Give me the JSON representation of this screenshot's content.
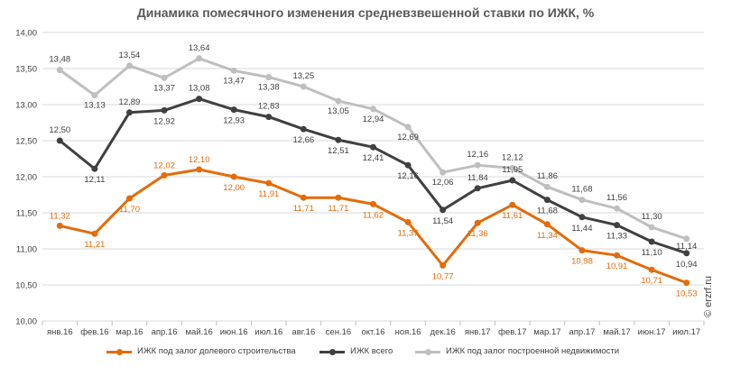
{
  "chart_data": {
    "type": "line",
    "title": "Динамика помесячного изменения средневзвешенной ставки по ИЖК, %",
    "xlabel": "",
    "ylabel": "",
    "ylim": [
      10.0,
      14.0
    ],
    "yticks": [
      "10,00",
      "10,50",
      "11,00",
      "11,50",
      "12,00",
      "12,50",
      "13,00",
      "13,50",
      "14,00"
    ],
    "categories": [
      "янв.16",
      "фев.16",
      "мар.16",
      "апр.16",
      "май.16",
      "июн.16",
      "июл.16",
      "авг.16",
      "сен.16",
      "окт.16",
      "ноя.16",
      "дек.16",
      "янв.17",
      "фев.17",
      "мар.17",
      "апр.17",
      "май.17",
      "июн.17",
      "июл.17"
    ],
    "grid": true,
    "legend_position": "bottom",
    "series": [
      {
        "name": "ИЖК под залог долевого строительства",
        "color": "#E36C0A",
        "values": [
          11.32,
          11.21,
          11.7,
          12.02,
          12.1,
          12.0,
          11.91,
          11.71,
          11.71,
          11.62,
          11.37,
          10.77,
          11.36,
          11.61,
          11.34,
          10.98,
          10.91,
          10.71,
          10.53
        ],
        "labels": [
          "11,32",
          "11,21",
          "11,70",
          "12,02",
          "12,10",
          "12,00",
          "11,91",
          "11,71",
          "11,71",
          "11,62",
          "11,37",
          "10,77",
          "11,36",
          "11,61",
          "11,34",
          "10,98",
          "10,91",
          "10,71",
          "10,53"
        ]
      },
      {
        "name": "ИЖК всего",
        "color": "#404040",
        "values": [
          12.5,
          12.11,
          12.89,
          12.92,
          13.08,
          12.93,
          12.83,
          12.66,
          12.51,
          12.41,
          12.16,
          11.54,
          11.84,
          11.95,
          11.68,
          11.44,
          11.33,
          11.1,
          10.94
        ],
        "labels": [
          "12,50",
          "12,11",
          "12,89",
          "12,92",
          "13,08",
          "12,93",
          "12,83",
          "12,66",
          "12,51",
          "12,41",
          "12,16",
          "11,54",
          "11,84",
          "11,95",
          "11,68",
          "11,44",
          "11,33",
          "11,10",
          "10,94"
        ]
      },
      {
        "name": "ИЖК под залог построенной недвижимости",
        "color": "#BFBFBF",
        "values": [
          13.48,
          13.13,
          13.54,
          13.37,
          13.64,
          13.47,
          13.38,
          13.25,
          13.05,
          12.94,
          12.69,
          12.06,
          12.16,
          12.12,
          11.86,
          11.68,
          11.56,
          11.3,
          11.14
        ],
        "labels": [
          "13,48",
          "13,13",
          "13,54",
          "13,37",
          "13,64",
          "13,47",
          "13,38",
          "13,25",
          "13,05",
          "12,94",
          "12,69",
          "12,06",
          "12,16",
          "12,12",
          "11,86",
          "11,68",
          "11,56",
          "11,30",
          "11,14"
        ]
      }
    ]
  },
  "watermark": "© erzrf.ru"
}
